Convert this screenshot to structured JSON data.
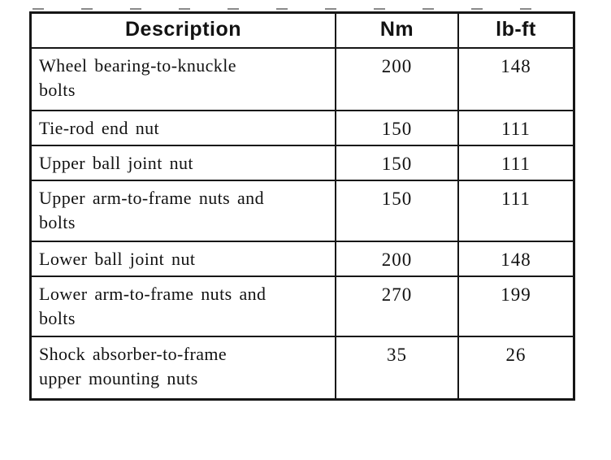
{
  "document": {
    "kind": "scanned torque specification table",
    "colors": {
      "ink": "#161616",
      "paper": "#ffffff"
    },
    "table": {
      "headers": [
        "Description",
        "Nm",
        "lb-ft"
      ],
      "rows": [
        {
          "description": "Wheel bearing-to-knuckle\nbolts",
          "nm": "200",
          "lbft": "148"
        },
        {
          "description": "Tie-rod end nut",
          "nm": "150",
          "lbft": "111"
        },
        {
          "description": "Upper ball joint nut",
          "nm": "150",
          "lbft": "111"
        },
        {
          "description": "Upper arm-to-frame nuts and\nbolts",
          "nm": "150",
          "lbft": "111"
        },
        {
          "description": "Lower ball joint nut",
          "nm": "200",
          "lbft": "148"
        },
        {
          "description": "Lower arm-to-frame nuts and\nbolts",
          "nm": "270",
          "lbft": "199"
        },
        {
          "description": "Shock absorber-to-frame\nupper mounting nuts",
          "nm": "35",
          "lbft": "26"
        }
      ]
    }
  }
}
